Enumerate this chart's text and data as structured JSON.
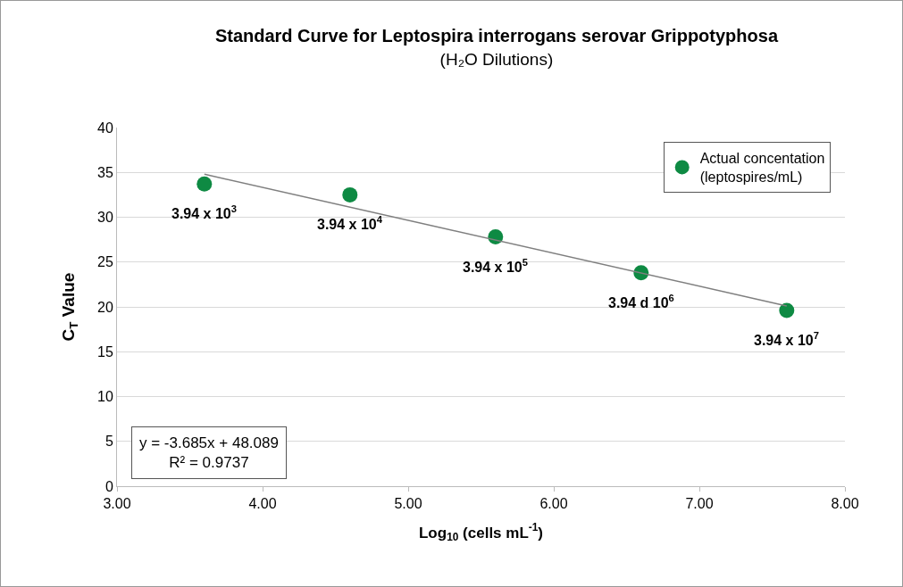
{
  "chart_data": {
    "type": "scatter",
    "title": "Standard Curve for Leptospira interrogans serovar Grippotyphosa",
    "subtitle": "(H₂O Dilutions)",
    "xlabel": "Log$_{10}$ (cells mL$^{-1}$)",
    "ylabel": "C$_{T}$ Value",
    "xlim": [
      3,
      8
    ],
    "xticks": [
      {
        "value": 3,
        "label": "3.00"
      },
      {
        "value": 4,
        "label": "4.00"
      },
      {
        "value": 5,
        "label": "5.00"
      },
      {
        "value": 6,
        "label": "6.00"
      },
      {
        "value": 7,
        "label": "7.00"
      },
      {
        "value": 8,
        "label": "8.00"
      }
    ],
    "ylim": [
      0,
      40
    ],
    "yticks": [
      0,
      5,
      10,
      15,
      20,
      25,
      30,
      35,
      40
    ],
    "grid": "y",
    "legend": "top right",
    "marker": "circle",
    "series": [
      {
        "name": "Actual concentation\n(leptospires/mL)",
        "color": "#0e8a43",
        "x": [
          3.6,
          4.6,
          5.6,
          6.6,
          7.6
        ],
        "values": [
          33.7,
          32.5,
          27.8,
          23.8,
          19.6
        ]
      },
      {
        "type": "line",
        "color": "#7f7f7f",
        "marker": "none",
        "x": [
          3.6,
          7.6
        ],
        "values": [
          34.8,
          20.1
        ]
      }
    ],
    "annotations": [
      {
        "text": "3.94 x 10$^{3}$",
        "x": 3.6,
        "y": 33.7
      },
      {
        "text": "3.94 x 10$^{4}$",
        "x": 4.6,
        "y": 32.5
      },
      {
        "text": "3.94 x 10$^{5}$",
        "x": 5.6,
        "y": 27.8
      },
      {
        "text": "3.94 d 10$^{6}$",
        "x": 6.6,
        "y": 23.8
      },
      {
        "text": "3.94 x 10$^{7}$",
        "x": 7.6,
        "y": 19.6
      },
      "y = -3.685x + 48.089",
      "R² = 0.9737"
    ]
  }
}
